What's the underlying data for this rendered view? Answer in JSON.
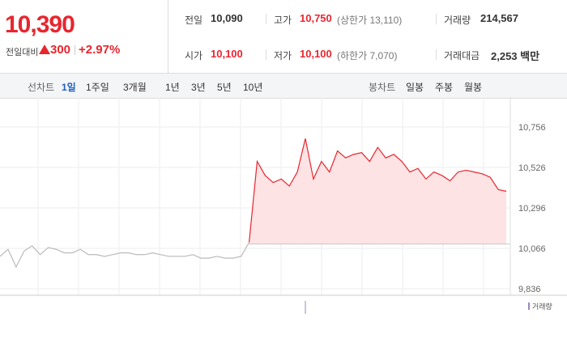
{
  "quote": {
    "price": "10,390",
    "change_label": "전일대비",
    "change": "300",
    "change_pct": "+2.97%"
  },
  "stats": [
    [
      {
        "label": "전일",
        "value": "10,090"
      },
      {
        "label": "고가",
        "value": "10,750",
        "note": "(상한가 13,110)"
      },
      {
        "label": "거래량",
        "value": "214,567"
      }
    ],
    [
      {
        "label": "시가",
        "value": "10,100"
      },
      {
        "label": "저가",
        "value": "10,100",
        "note": "(하한가 7,070)"
      },
      {
        "label": "거래대금",
        "value": "2,253 백만"
      }
    ]
  ],
  "toolbar": {
    "line_label": "선차트",
    "periods": [
      "1일",
      "1주일",
      "3개월",
      "1년",
      "3년",
      "5년",
      "10년"
    ],
    "candle_label": "봉차트",
    "candles": [
      "일봉",
      "주봉",
      "월봉"
    ]
  },
  "volume_label": "거래량",
  "chart_data": {
    "type": "line",
    "x": [
      0,
      2,
      4,
      6,
      8,
      10,
      12,
      14,
      16,
      18,
      20,
      22,
      24,
      26,
      28,
      30,
      32,
      34,
      36,
      38,
      40,
      42,
      44,
      46,
      48,
      50,
      52,
      54,
      56,
      58,
      60,
      62,
      64,
      66,
      68,
      70,
      72,
      74,
      76,
      78,
      80,
      82,
      84,
      86,
      88,
      90,
      92,
      94,
      96,
      98,
      100,
      102,
      104,
      106,
      108,
      110,
      112,
      114,
      116,
      118,
      120,
      122,
      124,
      126
    ],
    "xlim": [
      0,
      127
    ],
    "ylim": [
      9799,
      10926
    ],
    "yticks": [
      {
        "value": 10756,
        "label": "10,756"
      },
      {
        "value": 10526,
        "label": "10,526"
      },
      {
        "value": 10296,
        "label": "10,296"
      },
      {
        "value": 10066,
        "label": "10,066"
      },
      {
        "value": 9836,
        "label": "9,836"
      }
    ],
    "baseline": 10090,
    "series": [
      {
        "color": "#bbbbbb",
        "values": [
          10020,
          10060,
          9960,
          10050,
          10080,
          10030,
          10070,
          10060,
          10040,
          10040,
          10060,
          10030,
          10030,
          10020,
          10030,
          10040,
          10040,
          10030,
          10030,
          10040,
          10030,
          10020,
          10020,
          10020,
          10030,
          10010,
          10010,
          10020,
          10010,
          10010,
          10020,
          10100,
          null,
          null,
          null,
          null,
          null,
          null,
          null,
          null,
          null,
          null,
          null,
          null,
          null,
          null,
          null,
          null,
          null,
          null,
          null,
          null,
          null,
          null,
          null,
          null,
          null,
          null,
          null,
          null,
          null,
          null,
          null,
          null
        ]
      },
      {
        "color": "#e8262f",
        "fill": "#fde3e4",
        "values": [
          null,
          null,
          null,
          null,
          null,
          null,
          null,
          null,
          null,
          null,
          null,
          null,
          null,
          null,
          null,
          null,
          null,
          null,
          null,
          null,
          null,
          null,
          null,
          null,
          null,
          null,
          null,
          null,
          null,
          null,
          null,
          10100,
          10560,
          10480,
          10440,
          10460,
          10420,
          10500,
          10690,
          10460,
          10560,
          10500,
          10620,
          10580,
          10600,
          10610,
          10560,
          10640,
          10580,
          10600,
          10560,
          10500,
          10520,
          10460,
          10500,
          10480,
          10450,
          10500,
          10510,
          10500,
          10490,
          10470,
          10400,
          10390
        ]
      }
    ]
  }
}
